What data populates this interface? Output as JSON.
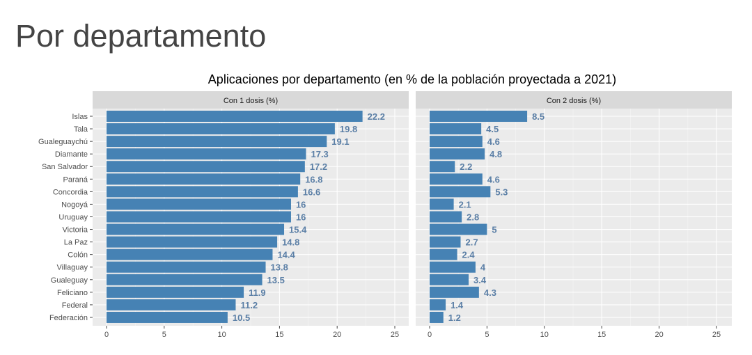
{
  "page": {
    "heading": "Por departamento"
  },
  "chart_data": {
    "type": "bar",
    "orientation": "horizontal",
    "title": "Aplicaciones por departamento (en % de la población proyectada a 2021)",
    "categories": [
      "Islas",
      "Tala",
      "Gualeguaychú",
      "Diamante",
      "San Salvador",
      "Paraná",
      "Concordia",
      "Nogoyá",
      "Uruguay",
      "Victoria",
      "La Paz",
      "Colón",
      "Villaguay",
      "Gualeguay",
      "Feliciano",
      "Federal",
      "Federación"
    ],
    "panels": [
      {
        "name": "Con 1 dosis (%)",
        "values": [
          22.2,
          19.8,
          19.1,
          17.3,
          17.2,
          16.8,
          16.6,
          16,
          16,
          15.4,
          14.8,
          14.4,
          13.8,
          13.5,
          11.9,
          11.2,
          10.5
        ]
      },
      {
        "name": "Con 2 dosis (%)",
        "values": [
          8.5,
          4.5,
          4.6,
          4.8,
          2.2,
          4.6,
          5.3,
          2.1,
          2.8,
          5,
          2.7,
          2.4,
          4,
          3.4,
          4.3,
          1.4,
          1.2
        ]
      }
    ],
    "xlim": [
      0,
      25
    ],
    "xticks": [
      "0",
      "5",
      "10",
      "15",
      "20",
      "25"
    ],
    "grid": true,
    "colors": {
      "bar": "#4682b4",
      "label": "#5b7fa6",
      "panel_bg": "#ebebeb",
      "strip_bg": "#d9d9d9"
    }
  }
}
